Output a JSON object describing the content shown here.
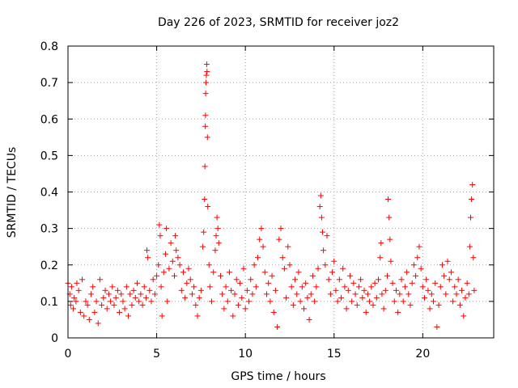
{
  "chart_data": {
    "type": "scatter",
    "title": "Day 226 of 2023, SRMTID for receiver joz2",
    "xlabel": "GPS time / hours",
    "ylabel": "SRMTID / TECUs",
    "xlim": [
      0,
      24
    ],
    "ylim": [
      0,
      0.8
    ],
    "xticks": [
      0,
      5,
      10,
      15,
      20
    ],
    "xtick_labels": [
      "0",
      "5",
      "10",
      "15",
      "20"
    ],
    "yticks": [
      0,
      0.1,
      0.2,
      0.3,
      0.4,
      0.5,
      0.6,
      0.7,
      0.8
    ],
    "ytick_labels": [
      "0",
      "0.1",
      "0.2",
      "0.3",
      "0.4",
      "0.5",
      "0.6",
      "0.7",
      "0.8"
    ],
    "grid": true,
    "marker": "+",
    "color": "#ff0000",
    "series": [
      {
        "name": "SRMTID",
        "points": [
          [
            0.0,
            0.15
          ],
          [
            0.1,
            0.12
          ],
          [
            0.15,
            0.09
          ],
          [
            0.2,
            0.14
          ],
          [
            0.3,
            0.08
          ],
          [
            0.35,
            0.11
          ],
          [
            0.45,
            0.1
          ],
          [
            0.5,
            0.15
          ],
          [
            0.6,
            0.13
          ],
          [
            0.7,
            0.07
          ],
          [
            0.8,
            0.16
          ],
          [
            0.9,
            0.06
          ],
          [
            1.0,
            0.1
          ],
          [
            1.1,
            0.09
          ],
          [
            1.2,
            0.05
          ],
          [
            1.3,
            0.12
          ],
          [
            1.4,
            0.14
          ],
          [
            1.5,
            0.07
          ],
          [
            1.6,
            0.1
          ],
          [
            1.7,
            0.04
          ],
          [
            1.8,
            0.16
          ],
          [
            1.9,
            0.09
          ],
          [
            2.0,
            0.11
          ],
          [
            2.1,
            0.13
          ],
          [
            2.2,
            0.08
          ],
          [
            2.3,
            0.12
          ],
          [
            2.4,
            0.1
          ],
          [
            2.5,
            0.14
          ],
          [
            2.6,
            0.09
          ],
          [
            2.7,
            0.11
          ],
          [
            2.8,
            0.13
          ],
          [
            2.9,
            0.07
          ],
          [
            3.0,
            0.12
          ],
          [
            3.1,
            0.1
          ],
          [
            3.2,
            0.08
          ],
          [
            3.3,
            0.14
          ],
          [
            3.4,
            0.06
          ],
          [
            3.5,
            0.12
          ],
          [
            3.6,
            0.09
          ],
          [
            3.7,
            0.13
          ],
          [
            3.8,
            0.11
          ],
          [
            3.9,
            0.15
          ],
          [
            4.0,
            0.1
          ],
          [
            4.1,
            0.12
          ],
          [
            4.2,
            0.09
          ],
          [
            4.3,
            0.14
          ],
          [
            4.4,
            0.11
          ],
          [
            4.45,
            0.24
          ],
          [
            4.5,
            0.22
          ],
          [
            4.6,
            0.13
          ],
          [
            4.7,
            0.1
          ],
          [
            4.8,
            0.16
          ],
          [
            4.9,
            0.12
          ],
          [
            5.0,
            0.17
          ],
          [
            5.1,
            0.2
          ],
          [
            5.15,
            0.31
          ],
          [
            5.2,
            0.28
          ],
          [
            5.25,
            0.14
          ],
          [
            5.3,
            0.06
          ],
          [
            5.4,
            0.18
          ],
          [
            5.5,
            0.23
          ],
          [
            5.55,
            0.3
          ],
          [
            5.6,
            0.1
          ],
          [
            5.7,
            0.19
          ],
          [
            5.8,
            0.26
          ],
          [
            5.9,
            0.21
          ],
          [
            6.0,
            0.17
          ],
          [
            6.05,
            0.28
          ],
          [
            6.1,
            0.24
          ],
          [
            6.2,
            0.22
          ],
          [
            6.3,
            0.2
          ],
          [
            6.4,
            0.13
          ],
          [
            6.5,
            0.18
          ],
          [
            6.6,
            0.11
          ],
          [
            6.7,
            0.15
          ],
          [
            6.8,
            0.19
          ],
          [
            6.9,
            0.16
          ],
          [
            7.0,
            0.12
          ],
          [
            7.1,
            0.14
          ],
          [
            7.2,
            0.09
          ],
          [
            7.3,
            0.06
          ],
          [
            7.4,
            0.11
          ],
          [
            7.5,
            0.13
          ],
          [
            7.6,
            0.25
          ],
          [
            7.65,
            0.29
          ],
          [
            7.7,
            0.38
          ],
          [
            7.72,
            0.47
          ],
          [
            7.74,
            0.58
          ],
          [
            7.75,
            0.61
          ],
          [
            7.76,
            0.67
          ],
          [
            7.78,
            0.7
          ],
          [
            7.8,
            0.72
          ],
          [
            7.82,
            0.75
          ],
          [
            7.84,
            0.73
          ],
          [
            7.86,
            0.55
          ],
          [
            7.88,
            0.36
          ],
          [
            7.95,
            0.2
          ],
          [
            8.0,
            0.14
          ],
          [
            8.1,
            0.1
          ],
          [
            8.2,
            0.18
          ],
          [
            8.3,
            0.24
          ],
          [
            8.35,
            0.28
          ],
          [
            8.4,
            0.33
          ],
          [
            8.45,
            0.3
          ],
          [
            8.5,
            0.26
          ],
          [
            8.6,
            0.17
          ],
          [
            8.7,
            0.12
          ],
          [
            8.8,
            0.08
          ],
          [
            8.9,
            0.14
          ],
          [
            9.0,
            0.1
          ],
          [
            9.1,
            0.18
          ],
          [
            9.2,
            0.13
          ],
          [
            9.3,
            0.06
          ],
          [
            9.4,
            0.12
          ],
          [
            9.5,
            0.16
          ],
          [
            9.6,
            0.09
          ],
          [
            9.7,
            0.15
          ],
          [
            9.8,
            0.11
          ],
          [
            9.9,
            0.19
          ],
          [
            10.0,
            0.08
          ],
          [
            10.1,
            0.13
          ],
          [
            10.2,
            0.1
          ],
          [
            10.3,
            0.16
          ],
          [
            10.4,
            0.12
          ],
          [
            10.5,
            0.2
          ],
          [
            10.6,
            0.14
          ],
          [
            10.7,
            0.22
          ],
          [
            10.8,
            0.27
          ],
          [
            10.9,
            0.3
          ],
          [
            11.0,
            0.25
          ],
          [
            11.1,
            0.18
          ],
          [
            11.2,
            0.12
          ],
          [
            11.3,
            0.15
          ],
          [
            11.4,
            0.1
          ],
          [
            11.5,
            0.17
          ],
          [
            11.6,
            0.07
          ],
          [
            11.7,
            0.13
          ],
          [
            11.8,
            0.03
          ],
          [
            11.9,
            0.27
          ],
          [
            12.0,
            0.3
          ],
          [
            12.1,
            0.22
          ],
          [
            12.2,
            0.19
          ],
          [
            12.3,
            0.11
          ],
          [
            12.4,
            0.25
          ],
          [
            12.5,
            0.2
          ],
          [
            12.6,
            0.14
          ],
          [
            12.7,
            0.09
          ],
          [
            12.8,
            0.16
          ],
          [
            12.9,
            0.12
          ],
          [
            13.0,
            0.18
          ],
          [
            13.1,
            0.1
          ],
          [
            13.2,
            0.14
          ],
          [
            13.3,
            0.08
          ],
          [
            13.4,
            0.15
          ],
          [
            13.5,
            0.11
          ],
          [
            13.6,
            0.05
          ],
          [
            13.7,
            0.12
          ],
          [
            13.8,
            0.17
          ],
          [
            13.9,
            0.1
          ],
          [
            14.0,
            0.14
          ],
          [
            14.1,
            0.19
          ],
          [
            14.2,
            0.36
          ],
          [
            14.25,
            0.39
          ],
          [
            14.3,
            0.33
          ],
          [
            14.35,
            0.29
          ],
          [
            14.4,
            0.24
          ],
          [
            14.5,
            0.2
          ],
          [
            14.6,
            0.28
          ],
          [
            14.7,
            0.16
          ],
          [
            14.8,
            0.12
          ],
          [
            14.9,
            0.18
          ],
          [
            15.0,
            0.21
          ],
          [
            15.1,
            0.13
          ],
          [
            15.2,
            0.1
          ],
          [
            15.3,
            0.16
          ],
          [
            15.4,
            0.11
          ],
          [
            15.5,
            0.19
          ],
          [
            15.6,
            0.14
          ],
          [
            15.7,
            0.08
          ],
          [
            15.8,
            0.13
          ],
          [
            15.9,
            0.17
          ],
          [
            16.0,
            0.1
          ],
          [
            16.1,
            0.15
          ],
          [
            16.2,
            0.12
          ],
          [
            16.3,
            0.09
          ],
          [
            16.4,
            0.14
          ],
          [
            16.5,
            0.16
          ],
          [
            16.6,
            0.11
          ],
          [
            16.7,
            0.13
          ],
          [
            16.8,
            0.07
          ],
          [
            16.9,
            0.12
          ],
          [
            17.0,
            0.1
          ],
          [
            17.1,
            0.14
          ],
          [
            17.2,
            0.09
          ],
          [
            17.3,
            0.15
          ],
          [
            17.4,
            0.11
          ],
          [
            17.5,
            0.16
          ],
          [
            17.6,
            0.22
          ],
          [
            17.65,
            0.26
          ],
          [
            17.7,
            0.12
          ],
          [
            17.8,
            0.08
          ],
          [
            17.9,
            0.13
          ],
          [
            18.0,
            0.17
          ],
          [
            18.05,
            0.38
          ],
          [
            18.1,
            0.33
          ],
          [
            18.15,
            0.27
          ],
          [
            18.2,
            0.21
          ],
          [
            18.3,
            0.15
          ],
          [
            18.4,
            0.1
          ],
          [
            18.5,
            0.13
          ],
          [
            18.6,
            0.07
          ],
          [
            18.7,
            0.12
          ],
          [
            18.8,
            0.16
          ],
          [
            18.9,
            0.1
          ],
          [
            19.0,
            0.14
          ],
          [
            19.1,
            0.18
          ],
          [
            19.2,
            0.12
          ],
          [
            19.3,
            0.09
          ],
          [
            19.4,
            0.15
          ],
          [
            19.5,
            0.2
          ],
          [
            19.6,
            0.17
          ],
          [
            19.7,
            0.22
          ],
          [
            19.8,
            0.25
          ],
          [
            19.9,
            0.19
          ],
          [
            20.0,
            0.14
          ],
          [
            20.1,
            0.11
          ],
          [
            20.2,
            0.16
          ],
          [
            20.3,
            0.13
          ],
          [
            20.4,
            0.08
          ],
          [
            20.5,
            0.12
          ],
          [
            20.6,
            0.1
          ],
          [
            20.7,
            0.15
          ],
          [
            20.8,
            0.03
          ],
          [
            20.9,
            0.09
          ],
          [
            21.0,
            0.14
          ],
          [
            21.1,
            0.2
          ],
          [
            21.2,
            0.17
          ],
          [
            21.3,
            0.12
          ],
          [
            21.4,
            0.21
          ],
          [
            21.5,
            0.16
          ],
          [
            21.6,
            0.18
          ],
          [
            21.7,
            0.1
          ],
          [
            21.8,
            0.14
          ],
          [
            21.9,
            0.12
          ],
          [
            22.0,
            0.16
          ],
          [
            22.1,
            0.09
          ],
          [
            22.2,
            0.13
          ],
          [
            22.3,
            0.06
          ],
          [
            22.4,
            0.11
          ],
          [
            22.5,
            0.15
          ],
          [
            22.6,
            0.12
          ],
          [
            22.65,
            0.25
          ],
          [
            22.7,
            0.33
          ],
          [
            22.75,
            0.38
          ],
          [
            22.8,
            0.42
          ],
          [
            22.85,
            0.22
          ],
          [
            22.9,
            0.13
          ]
        ]
      }
    ]
  }
}
